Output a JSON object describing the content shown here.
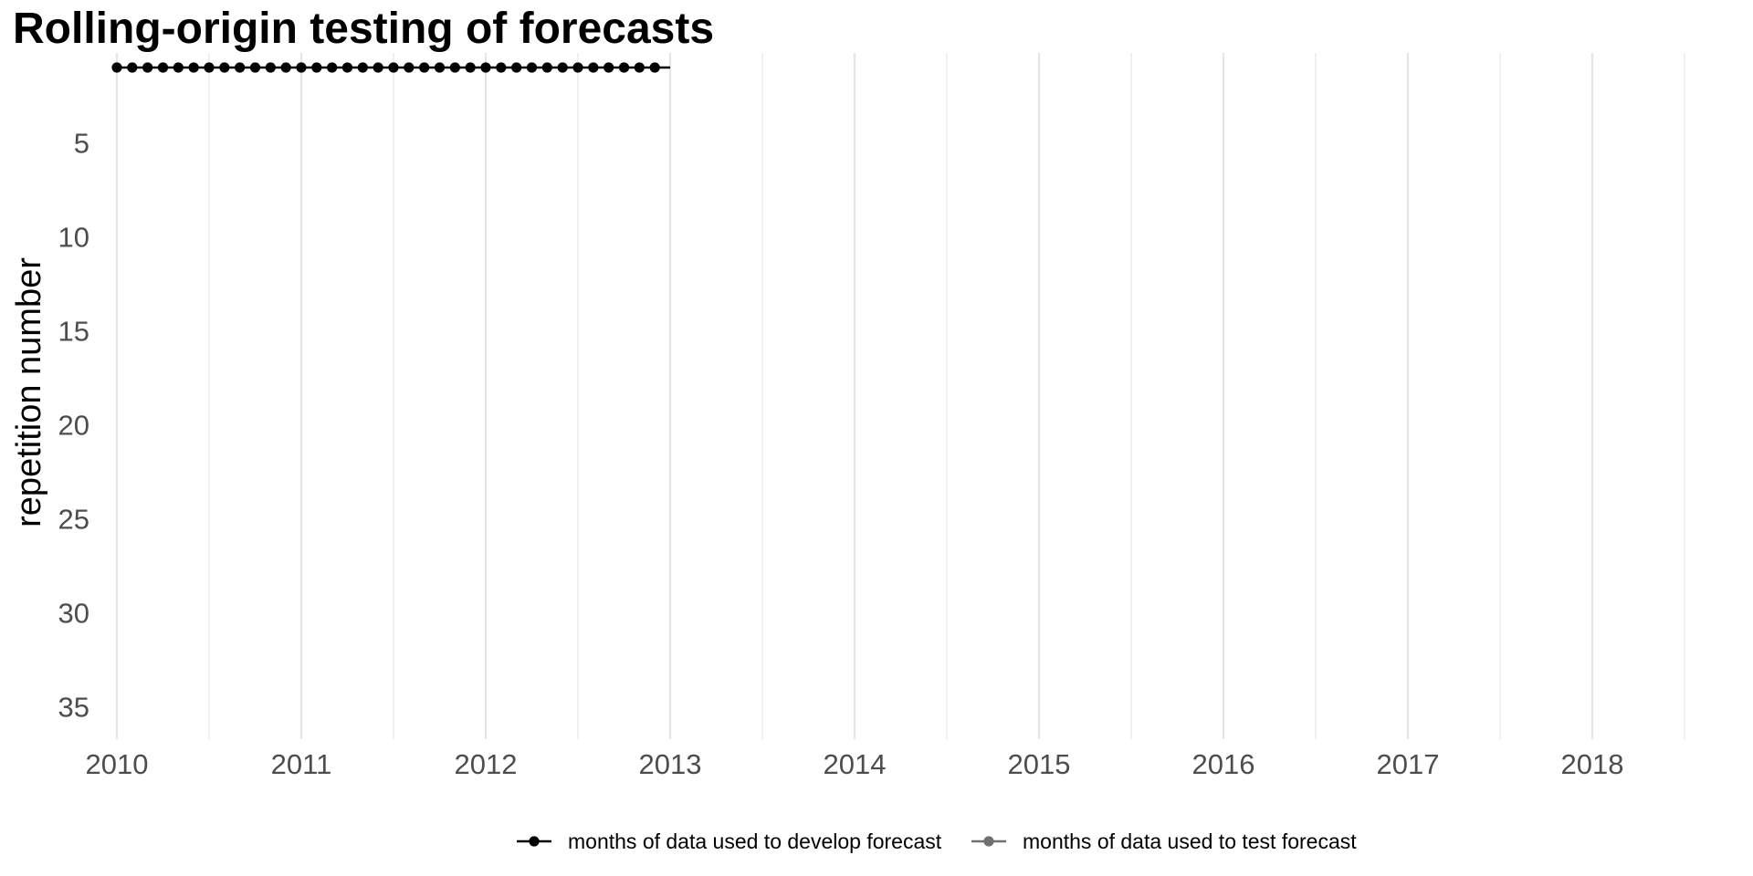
{
  "chart_data": {
    "type": "line",
    "title": "Rolling-origin testing of forecasts",
    "xlabel": "",
    "ylabel": "repetition number",
    "x_axis": {
      "type": "date",
      "range": [
        "2010-01-01",
        "2018-09-01"
      ],
      "ticks": [
        "2010",
        "2011",
        "2012",
        "2013",
        "2014",
        "2015",
        "2016",
        "2017",
        "2018"
      ]
    },
    "y_axis": {
      "reversed": true,
      "range": [
        1,
        37
      ],
      "ticks": [
        5,
        10,
        15,
        20,
        25,
        30,
        35
      ]
    },
    "grid": {
      "x_major": true,
      "x_minor": true,
      "y": false
    },
    "legend": {
      "position": "bottom"
    },
    "series": [
      {
        "name": "months of data used to develop forecast",
        "color": "#000000",
        "line_end": "2013-01-01",
        "points": [
          {
            "x": "2010-01-01",
            "y": 1
          },
          {
            "x": "2010-02-01",
            "y": 1
          },
          {
            "x": "2010-03-01",
            "y": 1
          },
          {
            "x": "2010-04-01",
            "y": 1
          },
          {
            "x": "2010-05-01",
            "y": 1
          },
          {
            "x": "2010-06-01",
            "y": 1
          },
          {
            "x": "2010-07-01",
            "y": 1
          },
          {
            "x": "2010-08-01",
            "y": 1
          },
          {
            "x": "2010-09-01",
            "y": 1
          },
          {
            "x": "2010-10-01",
            "y": 1
          },
          {
            "x": "2010-11-01",
            "y": 1
          },
          {
            "x": "2010-12-01",
            "y": 1
          },
          {
            "x": "2011-01-01",
            "y": 1
          },
          {
            "x": "2011-02-01",
            "y": 1
          },
          {
            "x": "2011-03-01",
            "y": 1
          },
          {
            "x": "2011-04-01",
            "y": 1
          },
          {
            "x": "2011-05-01",
            "y": 1
          },
          {
            "x": "2011-06-01",
            "y": 1
          },
          {
            "x": "2011-07-01",
            "y": 1
          },
          {
            "x": "2011-08-01",
            "y": 1
          },
          {
            "x": "2011-09-01",
            "y": 1
          },
          {
            "x": "2011-10-01",
            "y": 1
          },
          {
            "x": "2011-11-01",
            "y": 1
          },
          {
            "x": "2011-12-01",
            "y": 1
          },
          {
            "x": "2012-01-01",
            "y": 1
          },
          {
            "x": "2012-02-01",
            "y": 1
          },
          {
            "x": "2012-03-01",
            "y": 1
          },
          {
            "x": "2012-04-01",
            "y": 1
          },
          {
            "x": "2012-05-01",
            "y": 1
          },
          {
            "x": "2012-06-01",
            "y": 1
          },
          {
            "x": "2012-07-01",
            "y": 1
          },
          {
            "x": "2012-08-01",
            "y": 1
          },
          {
            "x": "2012-09-01",
            "y": 1
          },
          {
            "x": "2012-10-01",
            "y": 1
          },
          {
            "x": "2012-11-01",
            "y": 1
          },
          {
            "x": "2012-12-01",
            "y": 1
          }
        ]
      },
      {
        "name": "months of data used to test forecast",
        "color": "#707070",
        "points": []
      }
    ]
  }
}
